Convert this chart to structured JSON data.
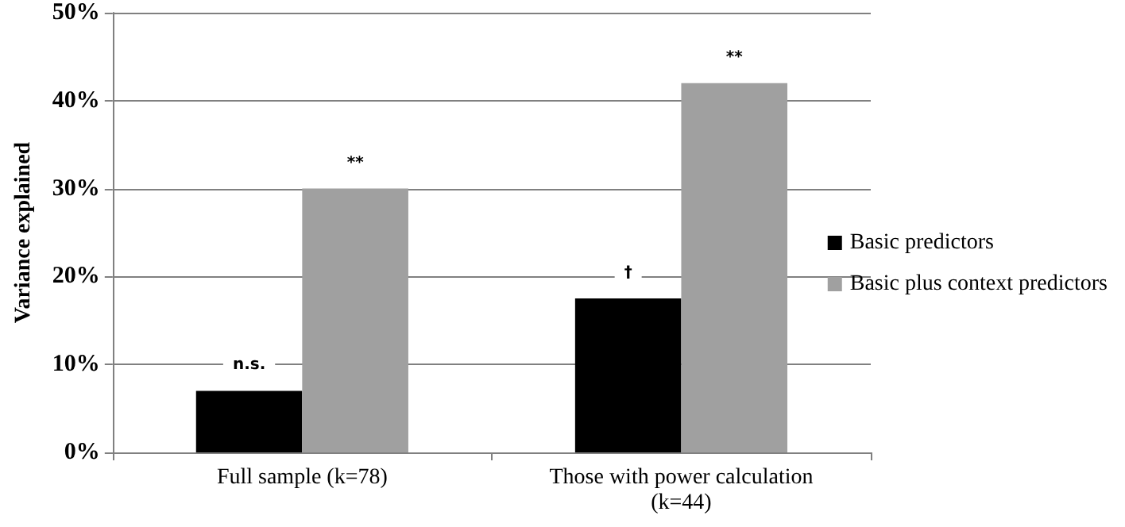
{
  "chart_data": {
    "type": "bar",
    "ylabel": "Variance explained",
    "categories": [
      "Full sample (k=78)",
      "Those with power calculation\n(k=44)"
    ],
    "series": [
      {
        "name": "Basic predictors",
        "color": "#000000",
        "values": [
          7,
          17.5
        ]
      },
      {
        "name": "Basic plus context predictors",
        "color": "#a0a0a0",
        "values": [
          30,
          42
        ]
      }
    ],
    "ylim": [
      0,
      50
    ],
    "yticks": [
      {
        "value": 0,
        "label": "0%"
      },
      {
        "value": 10,
        "label": "10%"
      },
      {
        "value": 20,
        "label": "20%"
      },
      {
        "value": 30,
        "label": "30%"
      },
      {
        "value": 40,
        "label": "40%"
      },
      {
        "value": 50,
        "label": "50%"
      }
    ],
    "grid": "y",
    "legend": "right",
    "annotations": [
      "n.s.",
      "**",
      "†",
      "**"
    ]
  }
}
